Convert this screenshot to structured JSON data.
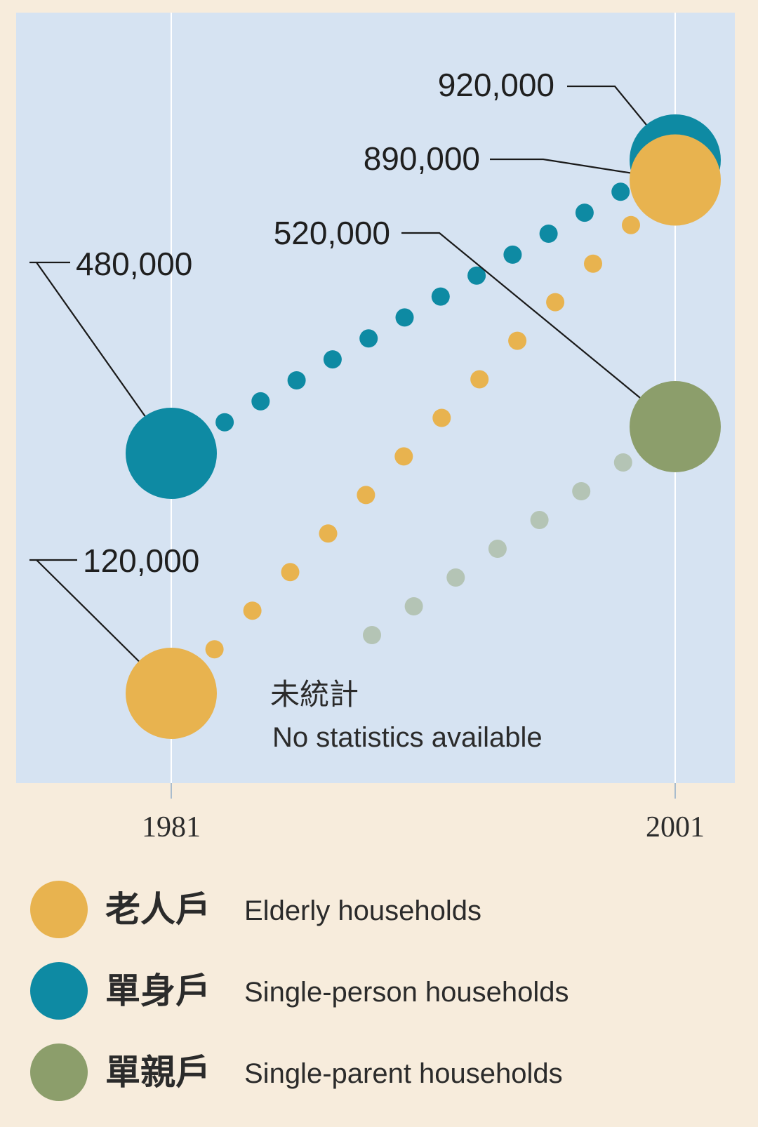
{
  "chart_data": {
    "type": "scatter",
    "x": [
      "1981",
      "2001"
    ],
    "series": [
      {
        "name": "單身戶 Single-person households",
        "key": "single_person",
        "color": "#0e8aa3",
        "values": [
          480000,
          920000
        ],
        "labels": [
          "480,000",
          "920,000"
        ]
      },
      {
        "name": "老人戶 Elderly households",
        "key": "elderly",
        "color": "#e8b34f",
        "values": [
          120000,
          890000
        ],
        "labels": [
          "120,000",
          "890,000"
        ]
      },
      {
        "name": "單親戶 Single-parent households",
        "key": "single_parent",
        "color": "#8c9e6b",
        "values": [
          null,
          520000
        ],
        "labels": [
          "",
          "520,000"
        ]
      }
    ],
    "annotation": {
      "zh": "未統計",
      "en": "No statistics available"
    },
    "grid": false,
    "legend_position": "bottom",
    "background": "#d6e3f2"
  },
  "legend": [
    {
      "zh": "老人戶",
      "en": "Elderly households",
      "color": "#e8b34f"
    },
    {
      "zh": "單身戶",
      "en": "Single-person households",
      "color": "#0e8aa3"
    },
    {
      "zh": "單親戶",
      "en": "Single-parent households",
      "color": "#8c9e6b"
    }
  ]
}
